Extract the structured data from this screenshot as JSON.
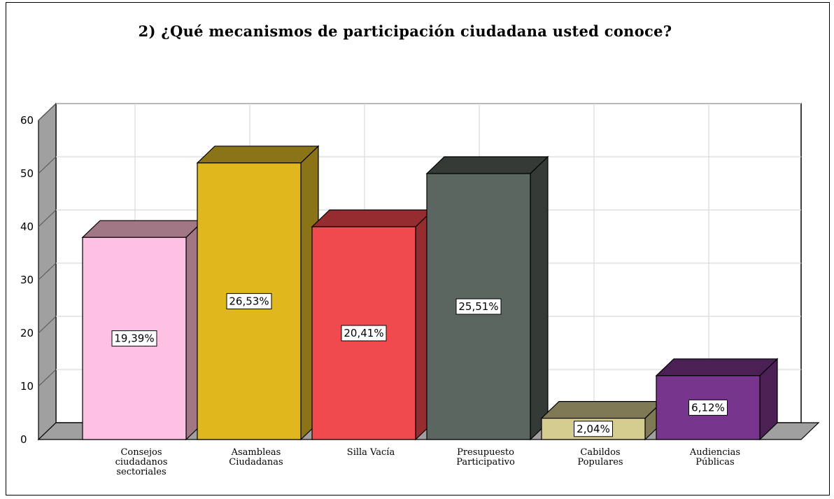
{
  "chart_data": {
    "type": "bar",
    "title": "2) ¿Qué mecanismos de participación ciudadana usted conoce?",
    "categories": [
      [
        "Consejos",
        "ciudadanos",
        "sectoriales"
      ],
      [
        "Asambleas",
        "Ciudadanas"
      ],
      [
        "Silla Vacía"
      ],
      [
        "Presupuesto",
        "Participativo"
      ],
      [
        "Cabildos",
        "Populares"
      ],
      [
        "Audiencias",
        "Públicas"
      ]
    ],
    "values": [
      38,
      52,
      40,
      50,
      4,
      12
    ],
    "data_labels": [
      "19,39%",
      "26,53%",
      "20,41%",
      "25,51%",
      "2,04%",
      "6,12%"
    ],
    "colors": {
      "front": [
        "#FFC1E3",
        "#E0B81E",
        "#EF4B4F",
        "#5C6660",
        "#D5CC8F",
        "#78358E"
      ],
      "top": [
        "#A17786",
        "#8B7417",
        "#952C30",
        "#343B37",
        "#7F7955",
        "#4A2055"
      ],
      "side": [
        "#A17786",
        "#8B7417",
        "#952C30",
        "#343B37",
        "#7F7955",
        "#4A2055"
      ]
    },
    "yticks": [
      "0",
      "10",
      "20",
      "30",
      "40",
      "50",
      "60"
    ],
    "ylim": [
      0,
      60
    ],
    "grid": true,
    "legend": "none"
  }
}
